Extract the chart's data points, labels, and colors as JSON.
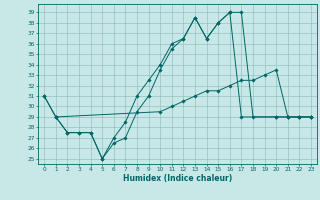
{
  "xlabel": "Humidex (Indice chaleur)",
  "bg_color": "#c8e8e8",
  "grid_color": "#8ab8b8",
  "line_color": "#006666",
  "xlim": [
    -0.5,
    23.5
  ],
  "ylim": [
    24.5,
    39.8
  ],
  "yticks": [
    25,
    26,
    27,
    28,
    29,
    30,
    31,
    32,
    33,
    34,
    35,
    36,
    37,
    38,
    39
  ],
  "xticks": [
    0,
    1,
    2,
    3,
    4,
    5,
    6,
    7,
    8,
    9,
    10,
    11,
    12,
    13,
    14,
    15,
    16,
    17,
    18,
    19,
    20,
    21,
    22,
    23
  ],
  "series": [
    {
      "x": [
        0,
        1,
        2,
        3,
        4,
        5,
        6,
        7,
        8,
        9,
        10,
        11,
        12,
        13,
        14,
        15,
        16,
        17,
        18,
        20,
        21,
        22,
        23
      ],
      "y": [
        31,
        29,
        27.5,
        27.5,
        27.5,
        25.0,
        26.5,
        27.0,
        29.5,
        31.0,
        33.5,
        35.5,
        36.5,
        38.5,
        36.5,
        38.0,
        39.0,
        39.0,
        29.0,
        29.0,
        29.0,
        29.0,
        29.0
      ]
    },
    {
      "x": [
        0,
        1,
        2,
        3,
        4,
        5,
        6,
        7,
        8,
        9,
        10,
        11,
        12,
        13,
        14,
        15,
        16,
        17,
        20,
        21,
        22,
        23
      ],
      "y": [
        31,
        29,
        27.5,
        27.5,
        27.5,
        25.0,
        27.0,
        28.5,
        31.0,
        32.5,
        34.0,
        36.0,
        36.5,
        38.5,
        36.5,
        38.0,
        39.0,
        29.0,
        29.0,
        29.0,
        29.0,
        29.0
      ]
    },
    {
      "x": [
        1,
        10,
        11,
        12,
        13,
        14,
        15,
        16,
        17,
        18,
        19,
        20,
        21,
        22,
        23
      ],
      "y": [
        29.0,
        29.5,
        30.0,
        30.5,
        31.0,
        31.5,
        31.5,
        32.0,
        32.5,
        32.5,
        33.0,
        33.5,
        29.0,
        29.0,
        29.0
      ]
    }
  ]
}
